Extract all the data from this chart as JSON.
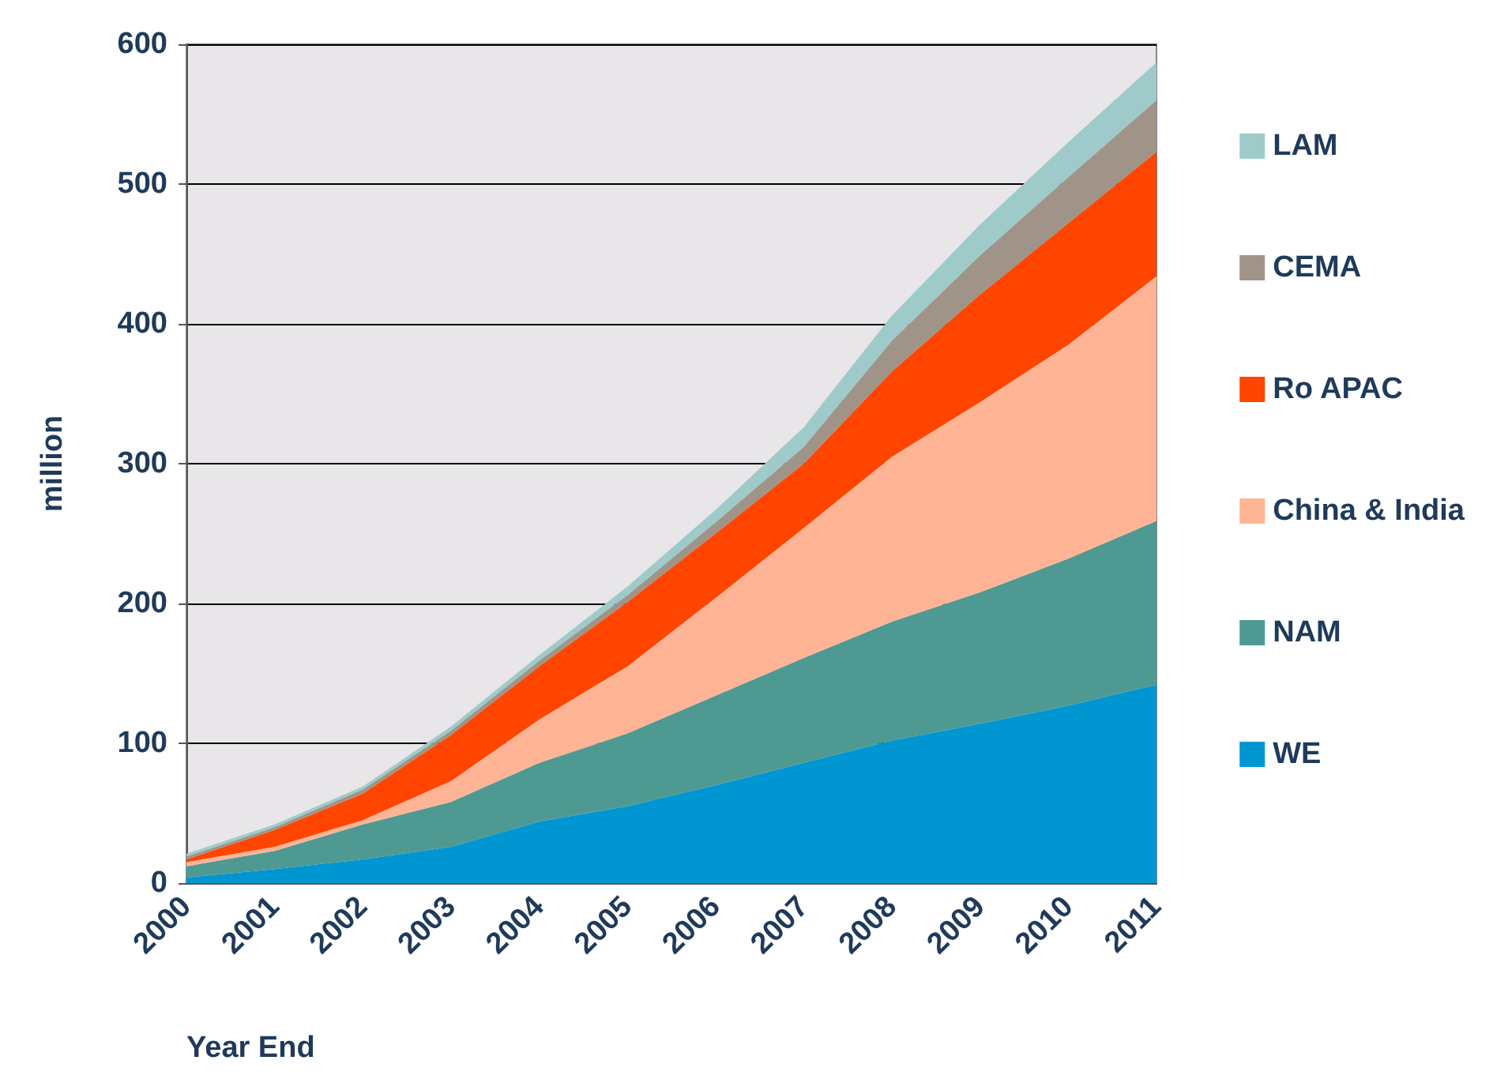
{
  "chart_data": {
    "type": "area",
    "stacked": true,
    "ylabel": "million",
    "xlabel": "Year End",
    "categories": [
      "2000",
      "2001",
      "2002",
      "2003",
      "2004",
      "2005",
      "2006",
      "2007",
      "2008",
      "2009",
      "2010",
      "2011"
    ],
    "ylim": [
      0,
      600
    ],
    "yticks": [
      0,
      100,
      200,
      300,
      400,
      500,
      600
    ],
    "grid": "y",
    "legend": "right",
    "series": [
      {
        "name": "WE",
        "color": "#0096d2",
        "values": [
          4,
          10,
          17,
          26,
          44,
          55,
          70,
          86,
          102,
          114,
          127,
          142
        ]
      },
      {
        "name": "NAM",
        "color": "#4e9a92",
        "values": [
          8,
          13,
          25,
          32,
          42,
          52,
          64,
          75,
          85,
          94,
          105,
          117
        ]
      },
      {
        "name": "China & India",
        "color": "#ffb496",
        "values": [
          3,
          3,
          3,
          15,
          31,
          48,
          70,
          93,
          118,
          136,
          153,
          175
        ]
      },
      {
        "name": "Ro APAC",
        "color": "#ff4500",
        "values": [
          2,
          12,
          19,
          33,
          38,
          46,
          46,
          46,
          61,
          77,
          87,
          89
        ]
      },
      {
        "name": "CEMA",
        "color": "#a09488",
        "values": [
          2,
          2,
          3,
          3,
          4,
          5,
          8,
          12,
          22,
          28,
          33,
          37
        ]
      },
      {
        "name": "LAM",
        "color": "#9ecaca",
        "values": [
          2,
          2,
          2,
          3,
          4,
          6,
          9,
          14,
          18,
          22,
          25,
          27
        ]
      }
    ]
  }
}
